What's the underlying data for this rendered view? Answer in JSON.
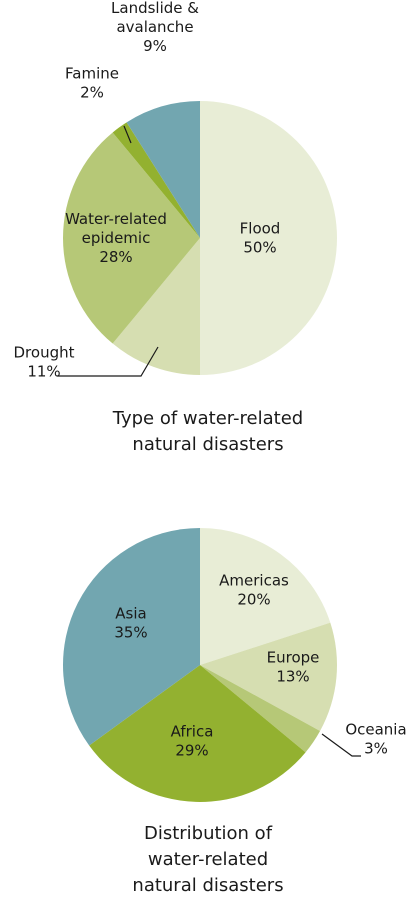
{
  "chart_data": [
    {
      "type": "pie",
      "title_lines": [
        "Type of water-related",
        "natural disasters"
      ],
      "slices": [
        {
          "label_lines": [
            "Flood"
          ],
          "value": 50,
          "value_label": "50%",
          "color": "#e8edd6"
        },
        {
          "label_lines": [
            "Drought"
          ],
          "value": 11,
          "value_label": "11%",
          "color": "#d6deb1"
        },
        {
          "label_lines": [
            "Water-related",
            "epidemic"
          ],
          "value": 28,
          "value_label": "28%",
          "color": "#b6c877"
        },
        {
          "label_lines": [
            "Famine"
          ],
          "value": 2,
          "value_label": "2%",
          "color": "#93b130"
        },
        {
          "label_lines": [
            "Landslide &",
            "avalanche"
          ],
          "value": 9,
          "value_label": "9%",
          "color": "#72a6b0"
        }
      ]
    },
    {
      "type": "pie",
      "title_lines": [
        "Distribution of",
        "water-related",
        "natural disasters"
      ],
      "slices": [
        {
          "label_lines": [
            "Americas"
          ],
          "value": 20,
          "value_label": "20%",
          "color": "#e8edd6"
        },
        {
          "label_lines": [
            "Europe"
          ],
          "value": 13,
          "value_label": "13%",
          "color": "#d6deb1"
        },
        {
          "label_lines": [
            "Oceania"
          ],
          "value": 3,
          "value_label": "3%",
          "color": "#b6c877"
        },
        {
          "label_lines": [
            "Africa"
          ],
          "value": 29,
          "value_label": "29%",
          "color": "#93b130"
        },
        {
          "label_lines": [
            "Asia"
          ],
          "value": 35,
          "value_label": "35%",
          "color": "#72a6b0"
        }
      ]
    }
  ]
}
